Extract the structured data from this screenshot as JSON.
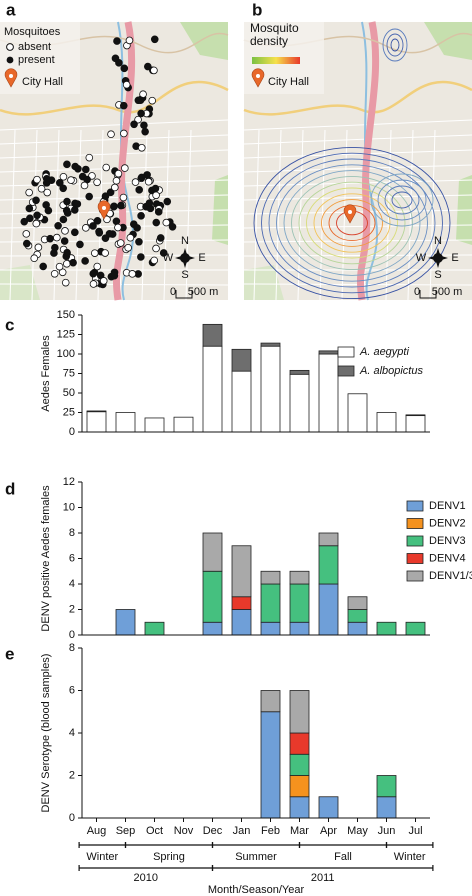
{
  "map_a": {
    "label": "a",
    "legend_title": "Mosquitoes",
    "legend": [
      "absent",
      "present"
    ],
    "landmark": "City Hall",
    "compass": [
      "N",
      "W",
      "E",
      "S"
    ],
    "scale": [
      "0",
      "500 m"
    ]
  },
  "map_b": {
    "label": "b",
    "legend_title": "Mosquito density",
    "landmark": "City Hall",
    "compass": [
      "N",
      "W",
      "E",
      "S"
    ],
    "scale": [
      "0",
      "500 m"
    ]
  },
  "chart_data": [
    {
      "type": "bar",
      "stacked": true,
      "panel_label": "c",
      "y_label": "Aedes Females",
      "ylim": [
        0,
        150
      ],
      "yticks": [
        0,
        25,
        50,
        75,
        100,
        125,
        150
      ],
      "series": [
        {
          "name": "A. aegypti",
          "color": "#ffffff",
          "values": [
            26,
            25,
            18,
            19,
            110,
            78,
            110,
            74,
            100,
            49,
            25,
            21
          ]
        },
        {
          "name": "A. albopictus",
          "color": "#6e6e6e",
          "values": [
            1,
            0,
            0,
            0,
            28,
            28,
            4,
            5,
            4,
            0,
            0,
            1
          ]
        }
      ]
    },
    {
      "type": "bar",
      "stacked": true,
      "panel_label": "d",
      "y_label": "DENV positive Aedes females",
      "ylim": [
        0,
        12
      ],
      "yticks": [
        0,
        2,
        4,
        6,
        8,
        10,
        12
      ],
      "series": [
        {
          "name": "DENV1",
          "color": "#6f9fd8",
          "values": [
            0,
            2,
            0,
            0,
            1,
            2,
            1,
            1,
            4,
            1,
            0,
            0
          ]
        },
        {
          "name": "DENV2",
          "color": "#f5921e",
          "values": [
            0,
            0,
            0,
            0,
            0,
            0,
            0,
            0,
            0,
            0,
            0,
            0
          ]
        },
        {
          "name": "DENV3",
          "color": "#45c07f",
          "values": [
            0,
            0,
            1,
            0,
            4,
            0,
            3,
            3,
            3,
            1,
            1,
            1
          ]
        },
        {
          "name": "DENV4",
          "color": "#e8392b",
          "values": [
            0,
            0,
            0,
            0,
            0,
            1,
            0,
            0,
            0,
            0,
            0,
            0
          ]
        },
        {
          "name": "DENV1/3",
          "color": "#a9a9a9",
          "values": [
            0,
            0,
            0,
            0,
            3,
            4,
            1,
            1,
            1,
            1,
            0,
            0
          ]
        }
      ]
    },
    {
      "type": "bar",
      "stacked": true,
      "panel_label": "e",
      "y_label": "DENV Serotype (blood samples)",
      "ylim": [
        0,
        8
      ],
      "yticks": [
        0,
        2,
        4,
        6,
        8
      ],
      "categories": [
        "Aug",
        "Sep",
        "Oct",
        "Nov",
        "Dec",
        "Jan",
        "Feb",
        "Mar",
        "Apr",
        "May",
        "Jun",
        "Jul"
      ],
      "seasons": [
        "Winter",
        "Spring",
        "Summer",
        "Fall",
        "Winter"
      ],
      "years": [
        "2010",
        "2011"
      ],
      "x_label": "Month/Season/Year",
      "series": [
        {
          "color": "#6f9fd8",
          "values": [
            0,
            0,
            0,
            0,
            0,
            0,
            5,
            1,
            1,
            0,
            1,
            0
          ]
        },
        {
          "color": "#f5921e",
          "values": [
            0,
            0,
            0,
            0,
            0,
            0,
            0,
            1,
            0,
            0,
            0,
            0
          ]
        },
        {
          "color": "#45c07f",
          "values": [
            0,
            0,
            0,
            0,
            0,
            0,
            0,
            1,
            0,
            0,
            1,
            0
          ]
        },
        {
          "color": "#e8392b",
          "values": [
            0,
            0,
            0,
            0,
            0,
            0,
            0,
            1,
            0,
            0,
            0,
            0
          ]
        },
        {
          "color": "#a9a9a9",
          "values": [
            0,
            0,
            0,
            0,
            0,
            0,
            1,
            2,
            0,
            0,
            0,
            0
          ]
        }
      ]
    }
  ]
}
